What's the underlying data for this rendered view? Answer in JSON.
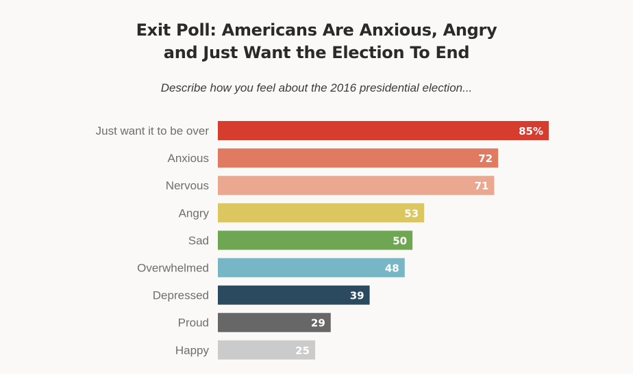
{
  "chart_data": {
    "type": "bar",
    "orientation": "horizontal",
    "title": "Exit Poll: Americans Are Anxious, Angry and Just Want the Election To End",
    "title_lines": [
      "Exit Poll: Americans Are Anxious, Angry",
      "and Just Want the Election To End"
    ],
    "subtitle": "Describe how you feel about the 2016 presidential election...",
    "xlabel": "",
    "ylabel": "",
    "unit": "%",
    "xlim": [
      0,
      85
    ],
    "grid": false,
    "legend": "none",
    "categories": [
      "Just want it to be over",
      "Anxious",
      "Nervous",
      "Angry",
      "Sad",
      "Overwhelmed",
      "Depressed",
      "Proud",
      "Happy"
    ],
    "values": [
      85,
      72,
      71,
      53,
      50,
      48,
      39,
      29,
      25
    ],
    "value_labels": [
      "85%",
      "72",
      "71",
      "53",
      "50",
      "48",
      "39",
      "29",
      "25"
    ],
    "colors": [
      "#d63d2e",
      "#e07a60",
      "#eba891",
      "#dcc65f",
      "#6fa653",
      "#77b6c6",
      "#2b4a5f",
      "#676767",
      "#cbcbcb"
    ]
  }
}
